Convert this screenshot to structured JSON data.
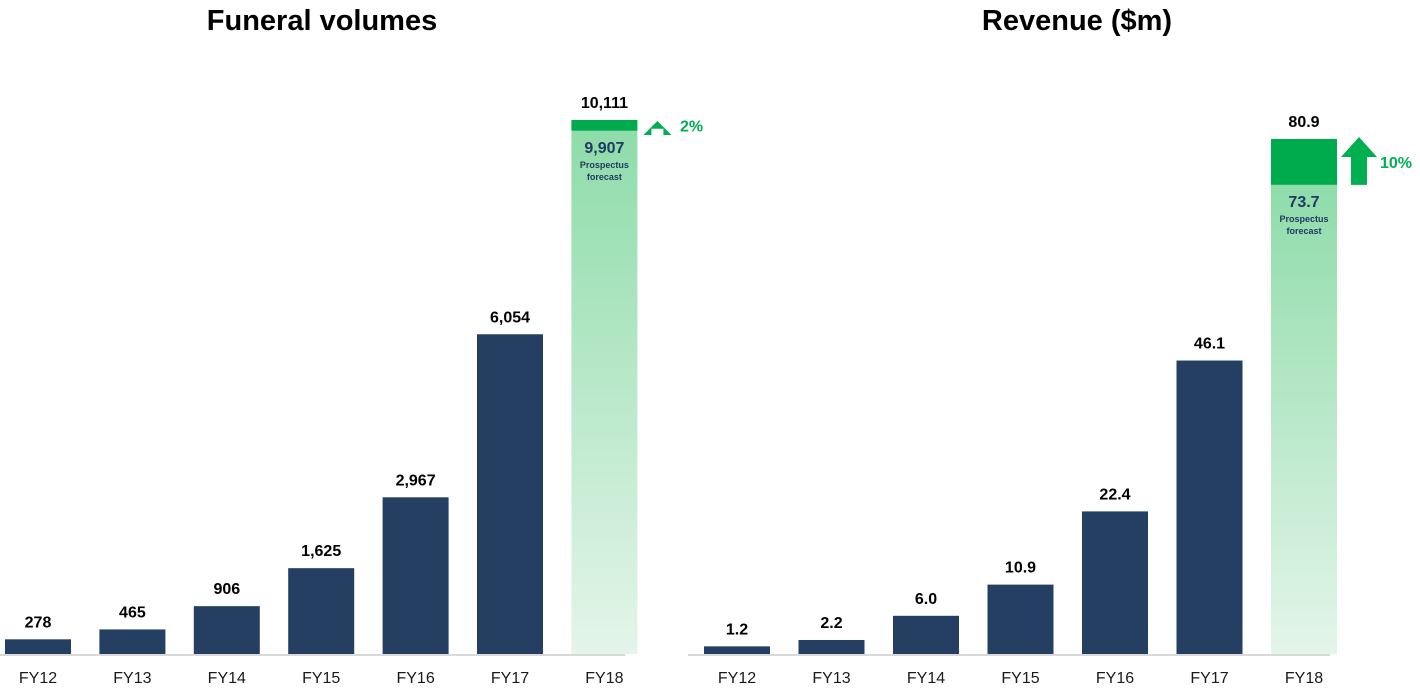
{
  "colors": {
    "bar": "#243f61",
    "forecast_band": "#00ab4e",
    "forecast_gradient_top": "#8fdcaa",
    "forecast_gradient_bottom": "#e4f5ea",
    "growth": "#00b050",
    "forecast_text": "#1f3a64",
    "axis": "#d9d9d9"
  },
  "chart_data": [
    {
      "type": "bar",
      "title": "Funeral volumes",
      "categories": [
        "FY12",
        "FY13",
        "FY14",
        "FY15",
        "FY16",
        "FY17",
        "FY18"
      ],
      "values": [
        278,
        465,
        906,
        1625,
        2967,
        6054,
        10111
      ],
      "value_labels": [
        "278",
        "465",
        "906",
        "1,625",
        "2,967",
        "6,054",
        "10,111"
      ],
      "ylim": [
        0,
        10111
      ],
      "grid": false,
      "forecast": {
        "category": "FY18",
        "value": 9907,
        "label": "9,907",
        "note_line1": "Prospectus",
        "note_line2": "forecast",
        "growth_label": "2%",
        "growth_icon": "arrow-up-icon"
      }
    },
    {
      "type": "bar",
      "title": "Revenue ($m)",
      "categories": [
        "FY12",
        "FY13",
        "FY14",
        "FY15",
        "FY16",
        "FY17",
        "FY18"
      ],
      "values": [
        1.2,
        2.2,
        6.0,
        10.9,
        22.4,
        46.1,
        80.9
      ],
      "value_labels": [
        "1.2",
        "2.2",
        "6.0",
        "10.9",
        "22.4",
        "46.1",
        "80.9"
      ],
      "ylim": [
        0,
        80.9
      ],
      "grid": false,
      "forecast": {
        "category": "FY18",
        "value": 73.7,
        "label": "73.7",
        "note_line1": "Prospectus",
        "note_line2": "forecast",
        "growth_label": "10%",
        "growth_icon": "arrow-up-icon"
      }
    }
  ]
}
